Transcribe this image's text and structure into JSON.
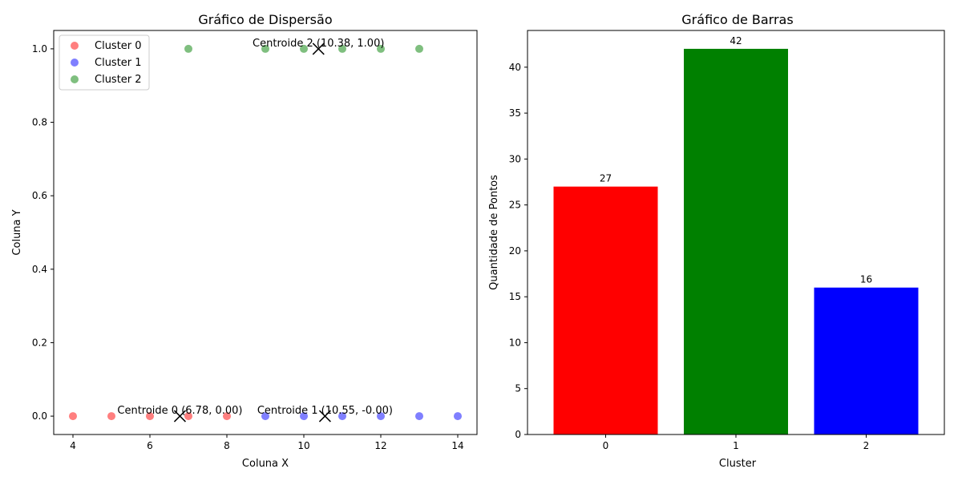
{
  "chart_data": [
    {
      "type": "scatter",
      "title": "Gráfico de Dispersão",
      "xlabel": "Coluna X",
      "ylabel": "Coluna Y",
      "xlim": [
        3.5,
        14.5
      ],
      "ylim": [
        -0.05,
        1.05
      ],
      "xticks": [
        4,
        6,
        8,
        10,
        12,
        14
      ],
      "yticks": [
        0.0,
        0.2,
        0.4,
        0.6,
        0.8,
        1.0
      ],
      "xtick_labels": [
        "4",
        "6",
        "8",
        "10",
        "12",
        "14"
      ],
      "ytick_labels": [
        "0.0",
        "0.2",
        "0.4",
        "0.6",
        "0.8",
        "1.0"
      ],
      "legend_position": "top-left",
      "grid": false,
      "series": [
        {
          "name": "Cluster 0",
          "color": "#ff0000",
          "x": [
            4,
            5,
            6,
            7,
            8
          ],
          "y": [
            0,
            0,
            0,
            0,
            0
          ]
        },
        {
          "name": "Cluster 1",
          "color": "#0000ff",
          "x": [
            9,
            10,
            11,
            12,
            13,
            14
          ],
          "y": [
            0,
            0,
            0,
            0,
            0,
            0
          ]
        },
        {
          "name": "Cluster 2",
          "color": "#008000",
          "x": [
            7,
            9,
            10,
            11,
            12,
            13
          ],
          "y": [
            1,
            1,
            1,
            1,
            1,
            1
          ]
        }
      ],
      "centroids": [
        {
          "x": 6.78,
          "y": 0.0,
          "label": "Centroide 0 (6.78, 0.00)"
        },
        {
          "x": 10.55,
          "y": 0.0,
          "label": "Centroide 1 (10.55, -0.00)"
        },
        {
          "x": 10.38,
          "y": 1.0,
          "label": "Centroide 2 (10.38, 1.00)"
        }
      ]
    },
    {
      "type": "bar",
      "title": "Gráfico de Barras",
      "xlabel": "Cluster",
      "ylabel": "Quantidade de Pontos",
      "categories": [
        "0",
        "1",
        "2"
      ],
      "values": [
        27,
        42,
        16
      ],
      "value_labels": [
        "27",
        "42",
        "16"
      ],
      "colors": [
        "#ff0000",
        "#008000",
        "#0000ff"
      ],
      "ylim": [
        0,
        44
      ],
      "yticks": [
        0,
        5,
        10,
        15,
        20,
        25,
        30,
        35,
        40
      ],
      "ytick_labels": [
        "0",
        "5",
        "10",
        "15",
        "20",
        "25",
        "30",
        "35",
        "40"
      ],
      "grid": false
    }
  ]
}
